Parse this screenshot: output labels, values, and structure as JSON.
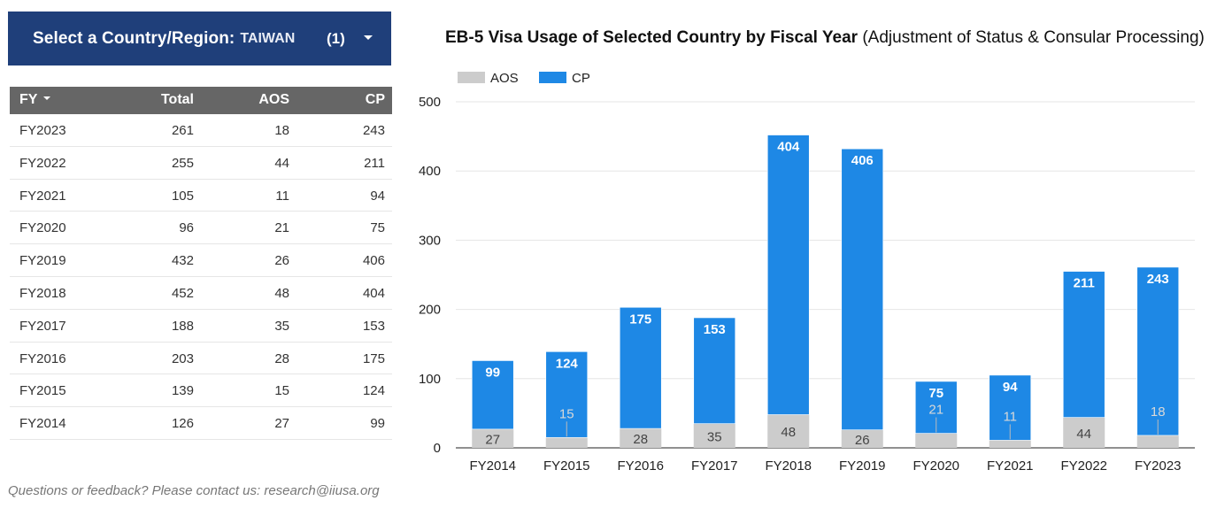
{
  "selector": {
    "label": "Select a Country/Region:",
    "value": "TAIWAN",
    "count": "(1)",
    "icon": "chevron-down-icon"
  },
  "table": {
    "headers": {
      "fy": "FY",
      "total": "Total",
      "aos": "AOS",
      "cp": "CP"
    },
    "rows": [
      {
        "fy": "FY2023",
        "total": "261",
        "aos": "18",
        "cp": "243"
      },
      {
        "fy": "FY2022",
        "total": "255",
        "aos": "44",
        "cp": "211"
      },
      {
        "fy": "FY2021",
        "total": "105",
        "aos": "11",
        "cp": "94"
      },
      {
        "fy": "FY2020",
        "total": "96",
        "aos": "21",
        "cp": "75"
      },
      {
        "fy": "FY2019",
        "total": "432",
        "aos": "26",
        "cp": "406"
      },
      {
        "fy": "FY2018",
        "total": "452",
        "aos": "48",
        "cp": "404"
      },
      {
        "fy": "FY2017",
        "total": "188",
        "aos": "35",
        "cp": "153"
      },
      {
        "fy": "FY2016",
        "total": "203",
        "aos": "28",
        "cp": "175"
      },
      {
        "fy": "FY2015",
        "total": "139",
        "aos": "15",
        "cp": "124"
      },
      {
        "fy": "FY2014",
        "total": "126",
        "aos": "27",
        "cp": "99"
      }
    ]
  },
  "chart_title": {
    "bold": "EB-5 Visa Usage of Selected Country by Fiscal Year",
    "rest": "(Adjustment of Status & Consular Processing)"
  },
  "chart_data": {
    "type": "bar",
    "stacked": true,
    "categories": [
      "FY2014",
      "FY2015",
      "FY2016",
      "FY2017",
      "FY2018",
      "FY2019",
      "FY2020",
      "FY2021",
      "FY2022",
      "FY2023"
    ],
    "series": [
      {
        "name": "AOS",
        "values": [
          27,
          15,
          28,
          35,
          48,
          26,
          21,
          11,
          44,
          18
        ],
        "color": "#cccccc",
        "label_color": "#444444"
      },
      {
        "name": "CP",
        "values": [
          99,
          124,
          175,
          153,
          404,
          406,
          75,
          94,
          211,
          243
        ],
        "color": "#1e88e5",
        "label_color": "#ffffff"
      }
    ],
    "ylim": [
      0,
      500
    ],
    "yticks": [
      0,
      100,
      200,
      300,
      400,
      500
    ],
    "grid": true,
    "legend": "top-left"
  },
  "footer": {
    "text": "Questions or feedback? Please contact us: research@iiusa.org"
  }
}
